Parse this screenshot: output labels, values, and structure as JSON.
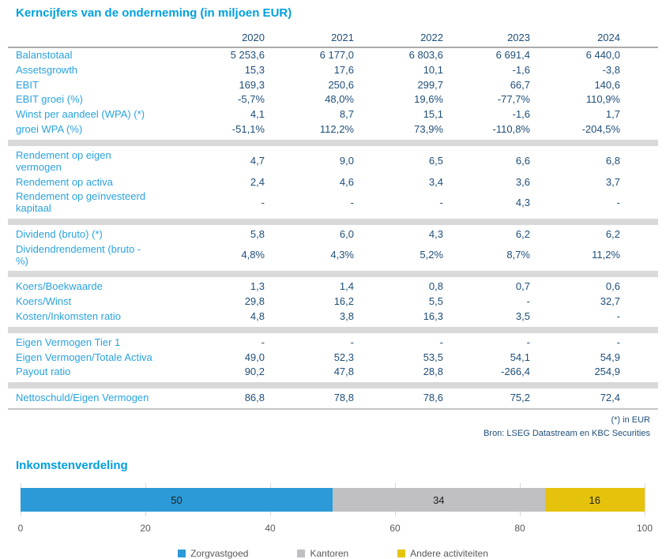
{
  "table": {
    "title": "Kerncijfers van de onderneming (in miljoen EUR)",
    "years": [
      "2020",
      "2021",
      "2022",
      "2023",
      "2024"
    ],
    "rows": [
      {
        "label": "Balanstotaal",
        "values": [
          "5 253,6",
          "6 177,0",
          "6 803,6",
          "6 691,4",
          "6 440,0"
        ]
      },
      {
        "label": "Assetsgrowth",
        "values": [
          "15,3",
          "17,6",
          "10,1",
          "-1,6",
          "-3,8"
        ]
      },
      {
        "label": "EBIT",
        "values": [
          "169,3",
          "250,6",
          "299,7",
          "66,7",
          "140,6"
        ]
      },
      {
        "label": "EBIT groei (%)",
        "values": [
          "-5,7%",
          "48,0%",
          "19,6%",
          "-77,7%",
          "110,9%"
        ]
      },
      {
        "label": "Winst per aandeel (WPA) (*)",
        "values": [
          "4,1",
          "8,7",
          "15,1",
          "-1,6",
          "1,7"
        ]
      },
      {
        "label": "groei WPA (%)",
        "values": [
          "-51,1%",
          "112,2%",
          "73,9%",
          "-110,8%",
          "-204,5%"
        ]
      },
      {
        "label": "Rendement op eigen\nvermogen",
        "values": [
          "4,7",
          "9,0",
          "6,5",
          "6,6",
          "6,8"
        ],
        "band_before": true
      },
      {
        "label": "Rendement op activa",
        "values": [
          "2,4",
          "4,6",
          "3,4",
          "3,6",
          "3,7"
        ]
      },
      {
        "label": "Rendement op geïnvesteerd\nkapitaal",
        "values": [
          "-",
          "-",
          "-",
          "4,3",
          "-"
        ]
      },
      {
        "label": "Dividend (bruto) (*)",
        "values": [
          "5,8",
          "6,0",
          "4,3",
          "6,2",
          "6,2"
        ],
        "band_before": true
      },
      {
        "label": "Dividendrendement (bruto -\n%)",
        "values": [
          "4,8%",
          "4,3%",
          "5,2%",
          "8,7%",
          "11,2%"
        ]
      },
      {
        "label": "Koers/Boekwaarde",
        "values": [
          "1,3",
          "1,4",
          "0,8",
          "0,7",
          "0,6"
        ],
        "band_before": true
      },
      {
        "label": "Koers/Winst",
        "values": [
          "29,8",
          "16,2",
          "5,5",
          "-",
          "32,7"
        ]
      },
      {
        "label": "Kosten/Inkomsten ratio",
        "values": [
          "4,8",
          "3,8",
          "16,3",
          "3,5",
          "-"
        ]
      },
      {
        "label": "Eigen Vermogen Tier 1",
        "values": [
          "-",
          "-",
          "-",
          "-",
          "-"
        ],
        "band_before": true
      },
      {
        "label": "Eigen Vermogen/Totale Activa",
        "values": [
          "49,0",
          "52,3",
          "53,5",
          "54,1",
          "54,9"
        ]
      },
      {
        "label": "Payout ratio",
        "values": [
          "90,2",
          "47,8",
          "28,8",
          "-266,4",
          "254,9"
        ]
      },
      {
        "label": "Nettoschuld/Eigen Vermogen",
        "values": [
          "86,8",
          "78,8",
          "78,6",
          "75,2",
          "72,4"
        ],
        "band_before": true
      }
    ],
    "footnote_unit": "(*) in EUR",
    "footnote_source": "Bron: LSEG Datastream en KBC Securities"
  },
  "chart": {
    "title": "Inkomstenverdeling"
  },
  "chart_data": {
    "type": "bar",
    "stacked": true,
    "orientation": "horizontal",
    "title": "Inkomstenverdeling",
    "series": [
      {
        "name": "Zorgvastgoed",
        "value": 50,
        "color": "#2B9AD7"
      },
      {
        "name": "Kantoren",
        "value": 34,
        "color": "#C0C0C2"
      },
      {
        "name": "Andere activiteiten",
        "value": 16,
        "color": "#E5C30D"
      }
    ],
    "xticks": [
      0,
      20,
      40,
      60,
      80,
      100
    ],
    "xlim": [
      0,
      100
    ],
    "grid": true,
    "legend_position": "bottom"
  },
  "colors": {
    "title_blue": "#00A0E0",
    "label_blue": "#29A3DF",
    "value_navy": "#1F4E79",
    "separator_gray": "#D9D9D9"
  }
}
